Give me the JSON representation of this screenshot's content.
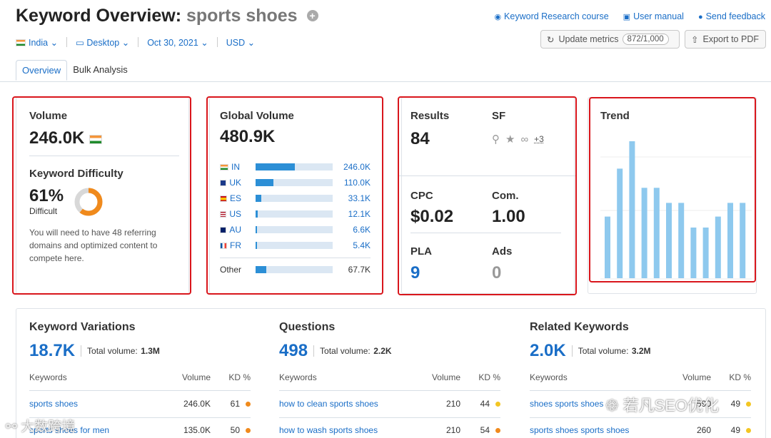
{
  "header": {
    "title_prefix": "Keyword Overview:",
    "keyword": "sports shoes",
    "plus_symbol": "+",
    "links": [
      "Keyword Research course",
      "User manual",
      "Send feedback"
    ],
    "filters": [
      "India",
      "Desktop",
      "Oct 30, 2021",
      "USD"
    ],
    "update_label": "Update metrics",
    "update_count": "872/1,000",
    "export_label": "Export to PDF"
  },
  "tabs": [
    "Overview",
    "Bulk Analysis"
  ],
  "volume": {
    "label": "Volume",
    "value": "246.0K",
    "kd_label": "Keyword Difficulty",
    "kd_value": "61%",
    "kd_fraction": 0.61,
    "kd_text": "Difficult",
    "kd_note": "You will need to have 48 referring domains and optimized content to compete here."
  },
  "global": {
    "label": "Global Volume",
    "value": "480.9K",
    "countries": [
      {
        "code": "IN",
        "value": "246.0K",
        "share": 0.51
      },
      {
        "code": "UK",
        "value": "110.0K",
        "share": 0.23
      },
      {
        "code": "ES",
        "value": "33.1K",
        "share": 0.07
      },
      {
        "code": "US",
        "value": "12.1K",
        "share": 0.025
      },
      {
        "code": "AU",
        "value": "6.6K",
        "share": 0.014
      },
      {
        "code": "FR",
        "value": "5.4K",
        "share": 0.011
      }
    ],
    "other_label": "Other",
    "other_value": "67.7K",
    "other_share": 0.14
  },
  "results": {
    "results_label": "Results",
    "results_value": "84",
    "sf_label": "SF",
    "sf_more": "+3",
    "cpc_label": "CPC",
    "cpc_value": "$0.02",
    "com_label": "Com.",
    "com_value": "1.00",
    "pla_label": "PLA",
    "pla_value": "9",
    "ads_label": "Ads",
    "ads_value": "0"
  },
  "trend": {
    "label": "Trend",
    "values": [
      0.45,
      0.8,
      1.0,
      0.66,
      0.66,
      0.55,
      0.55,
      0.37,
      0.37,
      0.45,
      0.55,
      0.55
    ]
  },
  "sections": [
    {
      "title": "Keyword Variations",
      "count": "18.7K",
      "total_label": "Total volume:",
      "total_value": "1.3M",
      "headers": [
        "Keywords",
        "Volume",
        "KD %"
      ],
      "rows": [
        {
          "kw": "sports shoes",
          "vol": "246.0K",
          "kd": "61",
          "color": "#f08a1c"
        },
        {
          "kw": "sports shoes for men",
          "vol": "135.0K",
          "kd": "50",
          "color": "#f08a1c"
        }
      ]
    },
    {
      "title": "Questions",
      "count": "498",
      "total_label": "Total volume:",
      "total_value": "2.2K",
      "headers": [
        "Keywords",
        "Volume",
        "KD %"
      ],
      "rows": [
        {
          "kw": "how to clean sports shoes",
          "vol": "210",
          "kd": "44",
          "color": "#f3c623"
        },
        {
          "kw": "how to wash sports shoes",
          "vol": "210",
          "kd": "54",
          "color": "#f08a1c"
        }
      ]
    },
    {
      "title": "Related Keywords",
      "count": "2.0K",
      "total_label": "Total volume:",
      "total_value": "3.2M",
      "headers": [
        "Keywords",
        "Volume",
        "KD %"
      ],
      "rows": [
        {
          "kw": "shoes sports shoes",
          "vol": "590",
          "kd": "49",
          "color": "#f3c623"
        },
        {
          "kw": "sports shoes sports shoes",
          "vol": "260",
          "kd": "49",
          "color": "#f3c623"
        }
      ]
    }
  ],
  "watermarks": [
    "大数跨境",
    "若凡SEO优化"
  ]
}
